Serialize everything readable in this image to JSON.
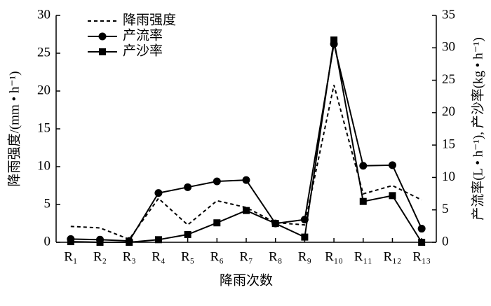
{
  "chart_data": {
    "type": "line",
    "ylabel": "降雨强度/(mm • h⁻¹)",
    "y2label": "产流率(L • h⁻¹), 产沙率(kg • h⁻¹)",
    "xlabel": "降雨次数",
    "categories": [
      "R₁",
      "R₂",
      "R₃",
      "R₄",
      "R₅",
      "R₆",
      "R₇",
      "R₈",
      "R₉",
      "R₁₀",
      "R₁₁",
      "R₁₂",
      "R₁₃"
    ],
    "series": [
      {
        "name": "降雨强度",
        "color": "#000000",
        "dash": true,
        "marker": "none",
        "axis": "y",
        "values": [
          2.1,
          1.9,
          0.4,
          5.8,
          2.3,
          5.5,
          4.6,
          2.6,
          2.3,
          20.8,
          6.4,
          7.5,
          5.6
        ]
      },
      {
        "name": "产流率",
        "color": "#000000",
        "dash": false,
        "marker": "circle",
        "axis": "y2",
        "values": [
          0.5,
          0.4,
          0.2,
          7.6,
          8.5,
          9.4,
          9.6,
          2.9,
          3.5,
          30.6,
          11.8,
          11.9,
          2.1
        ]
      },
      {
        "name": "产沙率",
        "color": "#000000",
        "dash": false,
        "marker": "square",
        "axis": "y2",
        "values": [
          0.1,
          0.0,
          0.0,
          0.4,
          1.2,
          3.0,
          4.9,
          2.9,
          0.8,
          31.2,
          6.3,
          7.2,
          0.0
        ]
      }
    ],
    "ylim": [
      0,
      30
    ],
    "yticks": [
      0,
      5,
      10,
      15,
      20,
      25,
      30
    ],
    "y2lim": [
      0,
      35
    ],
    "y2ticks": [
      0,
      5,
      10,
      15,
      20,
      25,
      30,
      35
    ],
    "legend": "upper left"
  }
}
